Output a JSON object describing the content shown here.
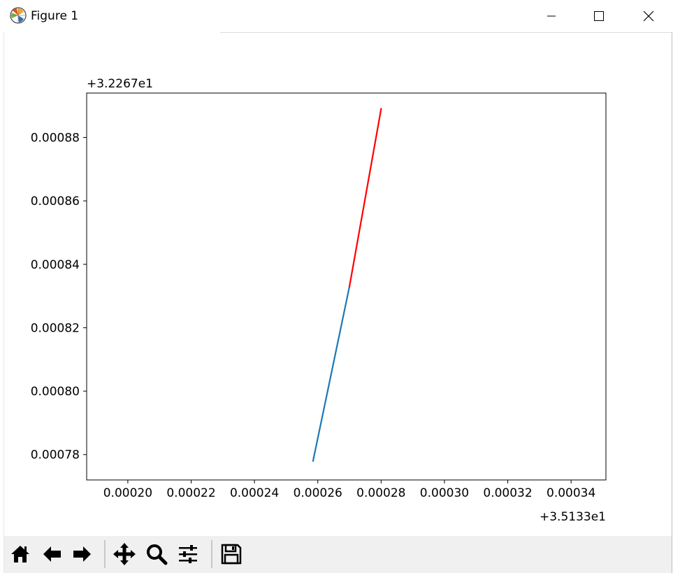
{
  "window": {
    "title": "Figure 1",
    "icons": {
      "app": "matplotlib-icon",
      "minimize": "minimize-icon",
      "maximize": "maximize-icon",
      "close": "close-icon"
    }
  },
  "toolbar": {
    "buttons": [
      {
        "name": "home-button",
        "icon": "home-icon"
      },
      {
        "name": "back-button",
        "icon": "arrow-left-icon"
      },
      {
        "name": "forward-button",
        "icon": "arrow-right-icon"
      },
      {
        "name": "pan-button",
        "icon": "move-icon"
      },
      {
        "name": "zoom-button",
        "icon": "magnifier-icon"
      },
      {
        "name": "configure-subplots-button",
        "icon": "sliders-icon"
      },
      {
        "name": "save-button",
        "icon": "floppy-disk-icon"
      }
    ]
  },
  "chart_data": {
    "type": "line",
    "title": "",
    "xlabel": "",
    "ylabel": "",
    "x_offset_text": "+3.5133e1",
    "y_offset_text": "+3.2267e1",
    "xlim": [
      0.000187,
      0.000351
    ],
    "ylim": [
      0.000772,
      0.000894
    ],
    "x_ticks": [
      0.0002,
      0.00022,
      0.00024,
      0.00026,
      0.00028,
      0.0003,
      0.00032,
      0.00034
    ],
    "x_tick_labels": [
      "0.00020",
      "0.00022",
      "0.00024",
      "0.00026",
      "0.00028",
      "0.00030",
      "0.00032",
      "0.00034"
    ],
    "y_ticks": [
      0.00078,
      0.0008,
      0.00082,
      0.00084,
      0.00086,
      0.00088
    ],
    "y_tick_labels": [
      "0.00078",
      "0.00080",
      "0.00082",
      "0.00084",
      "0.00086",
      "0.00088"
    ],
    "grid": false,
    "series": [
      {
        "color": "#1f77b4",
        "x": [
          0.0002585,
          0.00027
        ],
        "y": [
          0.000778,
          0.000833
        ]
      },
      {
        "color": "#ff0000",
        "x": [
          0.00027,
          0.00028
        ],
        "y": [
          0.000833,
          0.000889
        ]
      }
    ]
  }
}
